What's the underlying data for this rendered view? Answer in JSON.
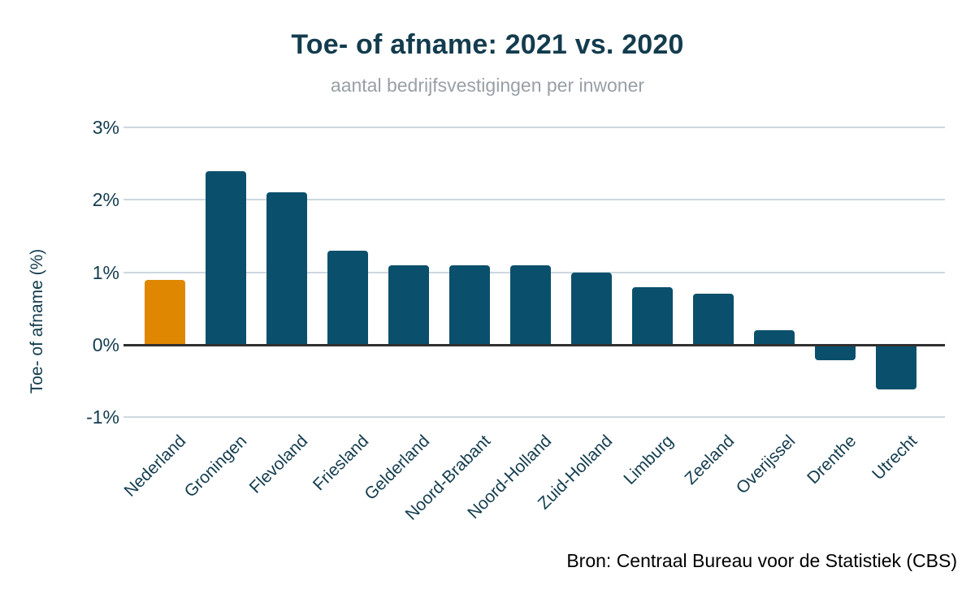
{
  "chart_data": {
    "type": "bar",
    "title": "Toe- of afname: 2021 vs. 2020",
    "subtitle": "aantal bedrijfsvestigingen per inwoner",
    "ylabel": "Toe- of afname (%)",
    "xlabel": "",
    "source": "Bron: Centraal Bureau voor de Statistiek (CBS)",
    "categories": [
      "Nederland",
      "Groningen",
      "Flevoland",
      "Friesland",
      "Gelderland",
      "Noord-Brabant",
      "Noord-Holland",
      "Zuid-Holland",
      "Limburg",
      "Zeeland",
      "Overijssel",
      "Drenthe",
      "Utrecht"
    ],
    "values": [
      0.9,
      2.4,
      2.1,
      1.3,
      1.1,
      1.1,
      1.1,
      1.0,
      0.8,
      0.7,
      0.2,
      -0.2,
      -0.6
    ],
    "unit": "%",
    "ylim": [
      -1,
      3
    ],
    "yticks": [
      {
        "value": 3,
        "label": "3%"
      },
      {
        "value": 2,
        "label": "2%"
      },
      {
        "value": 1,
        "label": "1%"
      },
      {
        "value": 0,
        "label": "0%"
      },
      {
        "value": -1,
        "label": "-1%"
      }
    ],
    "grid": "horizontal",
    "legend": "none",
    "highlight_index": 0,
    "colors": {
      "bar": "#0a506c",
      "highlight": "#e08700",
      "gridline": "#ccd8e0",
      "zero_line": "#303030",
      "axis_text": "#133c4e",
      "title_text": "#133c4e",
      "subtitle_text": "#98a0a6",
      "source_text": "#000000",
      "background": "#ffffff"
    }
  }
}
